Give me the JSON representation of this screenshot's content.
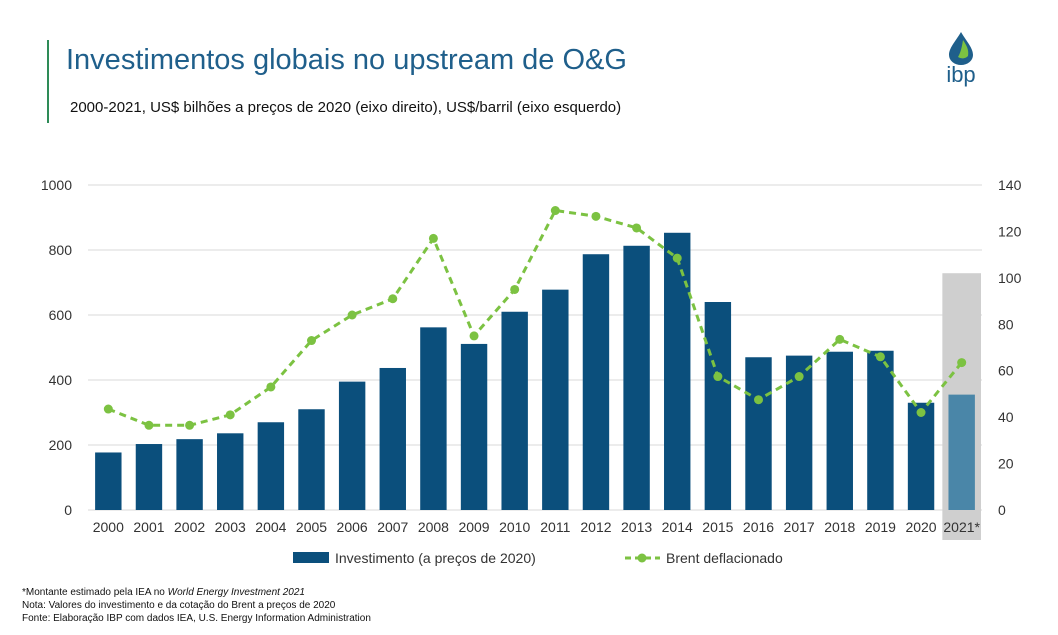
{
  "header": {
    "title": "Investimentos globais no upstream de O&G",
    "subtitle": "2000-2021, US$ bilhões a preços de 2020 (eixo direito), US$/barril (eixo esquerdo)",
    "logo_text": "ibp"
  },
  "colors": {
    "bar": "#0b4f7c",
    "bar_estimate": "#4a86a8",
    "line": "#7cc242",
    "highlight": "#cfcfcf",
    "grid": "#d9d9d9",
    "title": "#1f5f8b"
  },
  "chart_data": {
    "type": "bar",
    "categories": [
      "2000",
      "2001",
      "2002",
      "2003",
      "2004",
      "2005",
      "2006",
      "2007",
      "2008",
      "2009",
      "2010",
      "2011",
      "2012",
      "2013",
      "2014",
      "2015",
      "2016",
      "2017",
      "2018",
      "2019",
      "2020",
      "2021*"
    ],
    "series": [
      {
        "name": "Investimento (a preços de 2020)",
        "type": "bar",
        "axis": "left",
        "values": [
          177,
          203,
          218,
          236,
          270,
          310,
          395,
          437,
          562,
          511,
          610,
          678,
          787,
          813,
          853,
          640,
          470,
          475,
          487,
          490,
          330,
          355
        ]
      },
      {
        "name": "Brent deflacionado",
        "type": "line",
        "style": "dashed",
        "axis": "right",
        "values": [
          43.5,
          36.5,
          36.5,
          41,
          53,
          73,
          84,
          91,
          117,
          75,
          95,
          129,
          126.5,
          121.5,
          108.5,
          57.5,
          47.5,
          57.5,
          73.5,
          66,
          42,
          63.5
        ]
      }
    ],
    "y_left": {
      "ylim": [
        0,
        1000
      ],
      "ticks": [
        "0",
        "200",
        "400",
        "600",
        "800",
        "1000"
      ]
    },
    "y_right": {
      "ylim": [
        0,
        140
      ],
      "ticks": [
        "0",
        "20",
        "40",
        "60",
        "80",
        "100",
        "120",
        "140"
      ]
    },
    "grid": true,
    "legend": "bottom",
    "highlighted_category": "2021*"
  },
  "notes": {
    "line1_prefix": "*Montante estimado pela IEA no ",
    "line1_italic": "World Energy Investment 2021",
    "line2": "Nota: Valores do investimento e da cotação do Brent  a preços de 2020",
    "line3": "Fonte: Elaboração IBP com dados IEA, U.S. Energy Information Administration"
  }
}
